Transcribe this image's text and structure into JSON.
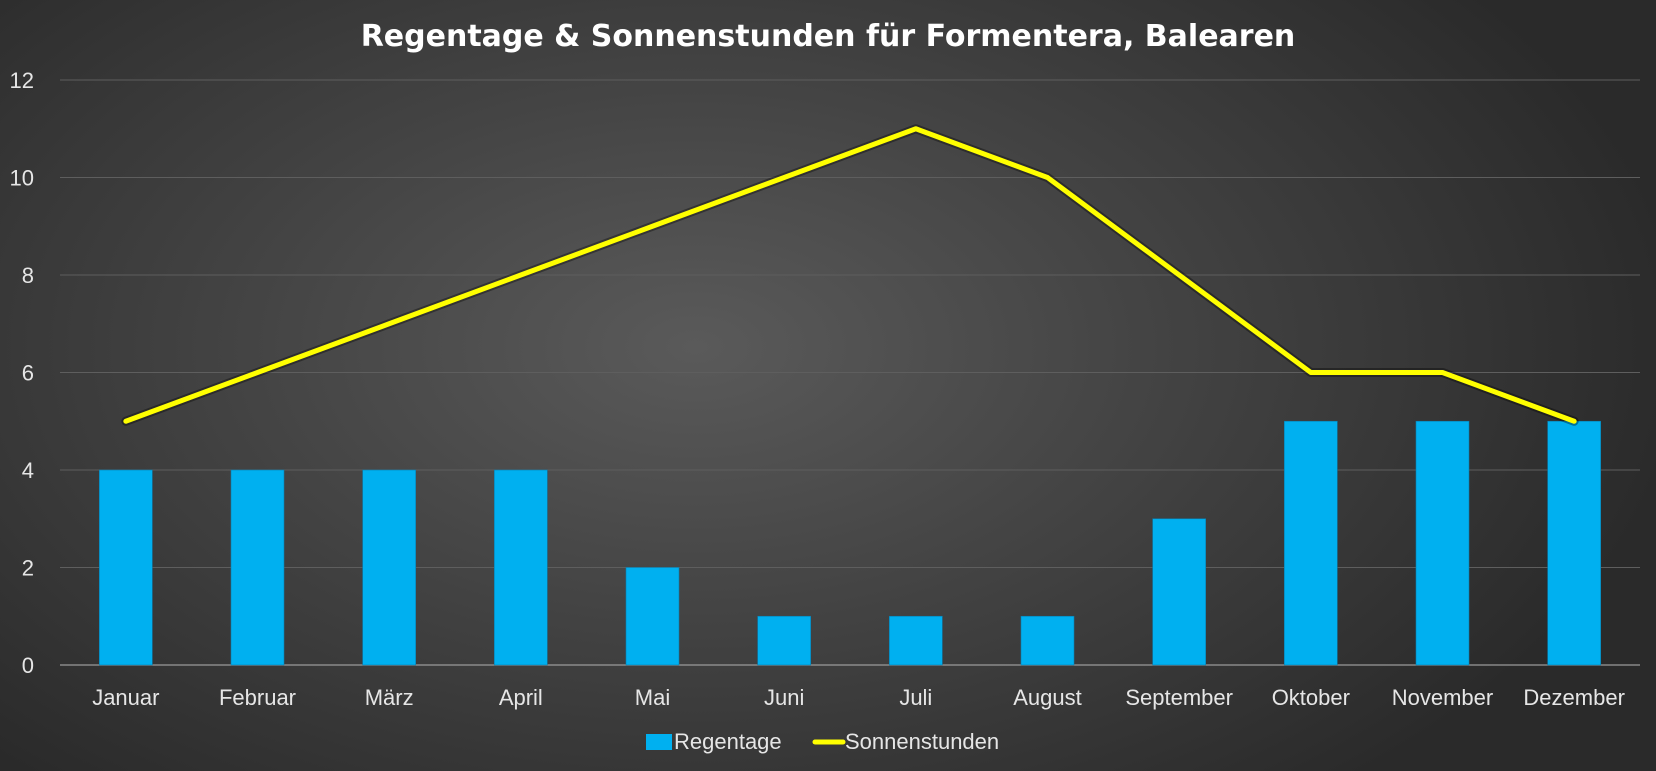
{
  "chart_data": {
    "type": "bar",
    "title": "Regentage & Sonnenstunden für Formentera, Balearen",
    "xlabel": "",
    "ylabel": "",
    "ylim": [
      0,
      12
    ],
    "yticks": [
      "0",
      "2",
      "4",
      "6",
      "8",
      "10",
      "12"
    ],
    "grid": true,
    "legend_position": "bottom",
    "categories": [
      "Januar",
      "Februar",
      "März",
      "April",
      "Mai",
      "Juni",
      "Juli",
      "August",
      "September",
      "Oktober",
      "November",
      "Dezember"
    ],
    "series": [
      {
        "name": "Regentage",
        "type": "bar",
        "color": "#00b0f0",
        "values": [
          4,
          4,
          4,
          4,
          2,
          1,
          1,
          1,
          3,
          5,
          5,
          5
        ]
      },
      {
        "name": "Sonnenstunden",
        "type": "line",
        "color": "#ffff00",
        "values": [
          5,
          6,
          7,
          8,
          9,
          10,
          11,
          10,
          8,
          6,
          6,
          5
        ]
      }
    ]
  }
}
